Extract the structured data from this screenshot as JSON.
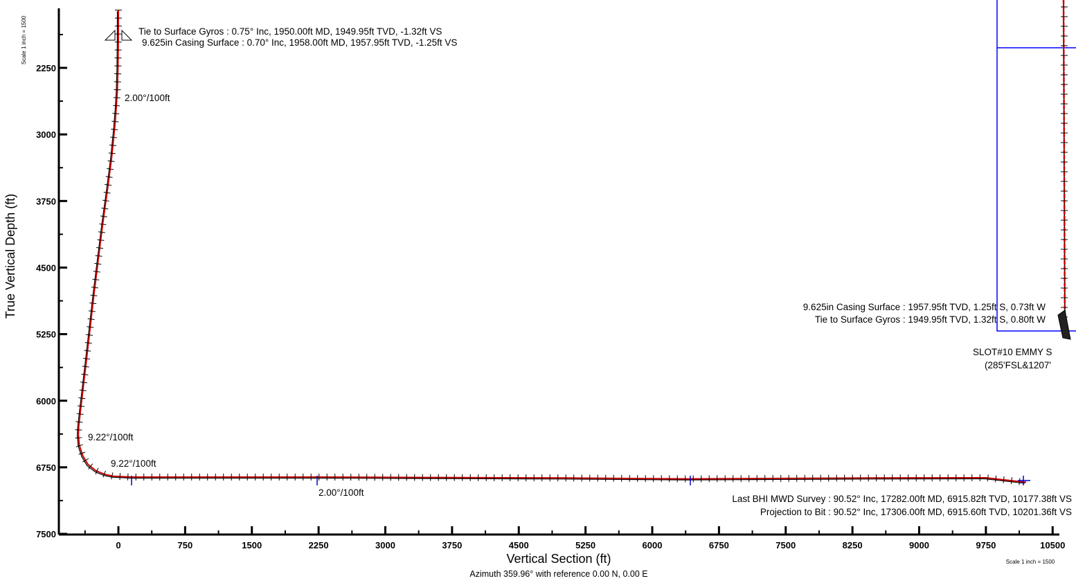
{
  "chart_data": {
    "type": "line",
    "xlabel": "Vertical Section (ft)",
    "ylabel": "True Vertical Depth (ft)",
    "x_subtitle": "Azimuth 359.96° with reference 0.00 N, 0.00 E",
    "scale_note": "Scale 1 inch = 1500",
    "x_ticks": [
      "0",
      "750",
      "1500",
      "2250",
      "3000",
      "3750",
      "4500",
      "5250",
      "6000",
      "6750",
      "7500",
      "8250",
      "9000",
      "9750",
      "10500"
    ],
    "x_tick_values": [
      0,
      750,
      1500,
      2250,
      3000,
      3750,
      4500,
      5250,
      6000,
      6750,
      7500,
      8250,
      9000,
      9750,
      10500
    ],
    "y_ticks": [
      "2250",
      "3000",
      "3750",
      "4500",
      "5250",
      "6000",
      "6750",
      "7500"
    ],
    "y_tick_values": [
      2250,
      3000,
      3750,
      4500,
      5250,
      6000,
      6750,
      7500
    ],
    "xlim": [
      -650,
      10650
    ],
    "ylim": [
      1600,
      7500
    ],
    "y_inverted": true,
    "series": [
      {
        "color": "#cc0000",
        "x": [
          0,
          -1,
          -5,
          -12,
          -24,
          -40,
          -75,
          -120,
          -175,
          -225,
          -275,
          -320,
          -360,
          -395,
          -425,
          -445,
          -450,
          -440,
          -400,
          -340,
          -250,
          -150,
          -60,
          150,
          1000,
          2250,
          3500,
          5000,
          6400,
          7500,
          8500,
          9750,
          10177.38,
          10201.36
        ],
        "y": [
          1600,
          1950,
          2250,
          2500,
          2700,
          2900,
          3250,
          3600,
          4000,
          4400,
          4800,
          5200,
          5550,
          5850,
          6100,
          6280,
          6380,
          6500,
          6620,
          6720,
          6790,
          6830,
          6850,
          6860,
          6860,
          6860,
          6865,
          6870,
          6880,
          6875,
          6870,
          6868,
          6915.82,
          6915.6
        ]
      }
    ],
    "annotations": [
      {
        "text": "Tie to Surface Gyros : 0.75° Inc, 1950.00ft MD, 1949.95ft TVD, -1.32ft VS",
        "x": 0,
        "y": 1950
      },
      {
        "text": "9.625in Casing Surface : 0.70° Inc, 1958.00ft MD, 1957.95ft TVD, -1.25ft VS",
        "x": 0,
        "y": 1958
      },
      {
        "text": "2.00°/100ft",
        "x": 0,
        "y": 2600
      },
      {
        "text": "9.22°/100ft",
        "x": -450,
        "y": 6380
      },
      {
        "text": "9.22°/100ft",
        "x": -120,
        "y": 6740
      },
      {
        "text": "2.00°/100ft",
        "x": 2250,
        "y": 6990
      },
      {
        "text": "Last BHI MWD Survey : 90.52° Inc, 17282.00ft MD, 6915.82ft TVD, 10177.38ft VS",
        "x": 10177.38,
        "y": 6915.82
      },
      {
        "text": "Projection to Bit : 90.52° Inc, 17306.00ft MD, 6915.60ft TVD, 10201.36ft VS",
        "x": 10201.36,
        "y": 6915.6
      }
    ],
    "inset": {
      "labels": [
        "9.625in Casing Surface : 1957.95ft TVD, 1.25ft S, 0.73ft W",
        "Tie to Surface Gyros : 1949.95ft TVD, 1.32ft S, 0.80ft W",
        "SLOT#10 EMMY S",
        "(285'FSL&1207'"
      ],
      "box_color": "#0000ff",
      "path_color": "#cc0000"
    }
  }
}
